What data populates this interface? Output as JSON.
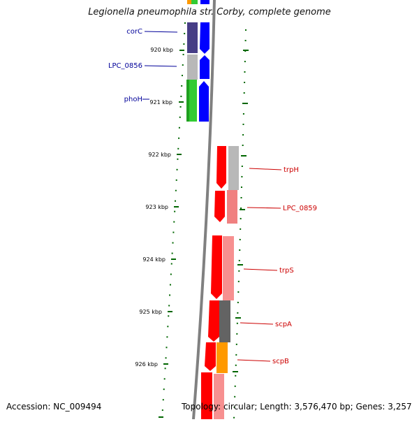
{
  "title": "Legionella pneumophila str. Corby, complete genome",
  "footer": {
    "accession": "Accession: NC_009494",
    "topology": "Topology: circular; Length: 3,576,470 bp; Genes: 3,257"
  },
  "ticks": [
    "920 kbp",
    "921 kbp",
    "922 kbp",
    "923 kbp",
    "924 kbp",
    "925 kbp",
    "926 kbp"
  ],
  "genes_left": [
    {
      "label": "corC",
      "color": "#000099"
    },
    {
      "label": "LPC_0856",
      "color": "#000099"
    },
    {
      "label": "phoH",
      "color": "#000099"
    }
  ],
  "genes_right": [
    {
      "label": "trpH",
      "color": "#cc0000"
    },
    {
      "label": "LPC_0859",
      "color": "#cc0000"
    },
    {
      "label": "trpS",
      "color": "#cc0000"
    },
    {
      "label": "scpA",
      "color": "#cc0000"
    },
    {
      "label": "scpB",
      "color": "#cc0000"
    }
  ],
  "colors": {
    "forward_strand": "#0000ff",
    "reverse_strand": "#ff0000",
    "ticks": "#006600",
    "backbone": "#808080"
  }
}
